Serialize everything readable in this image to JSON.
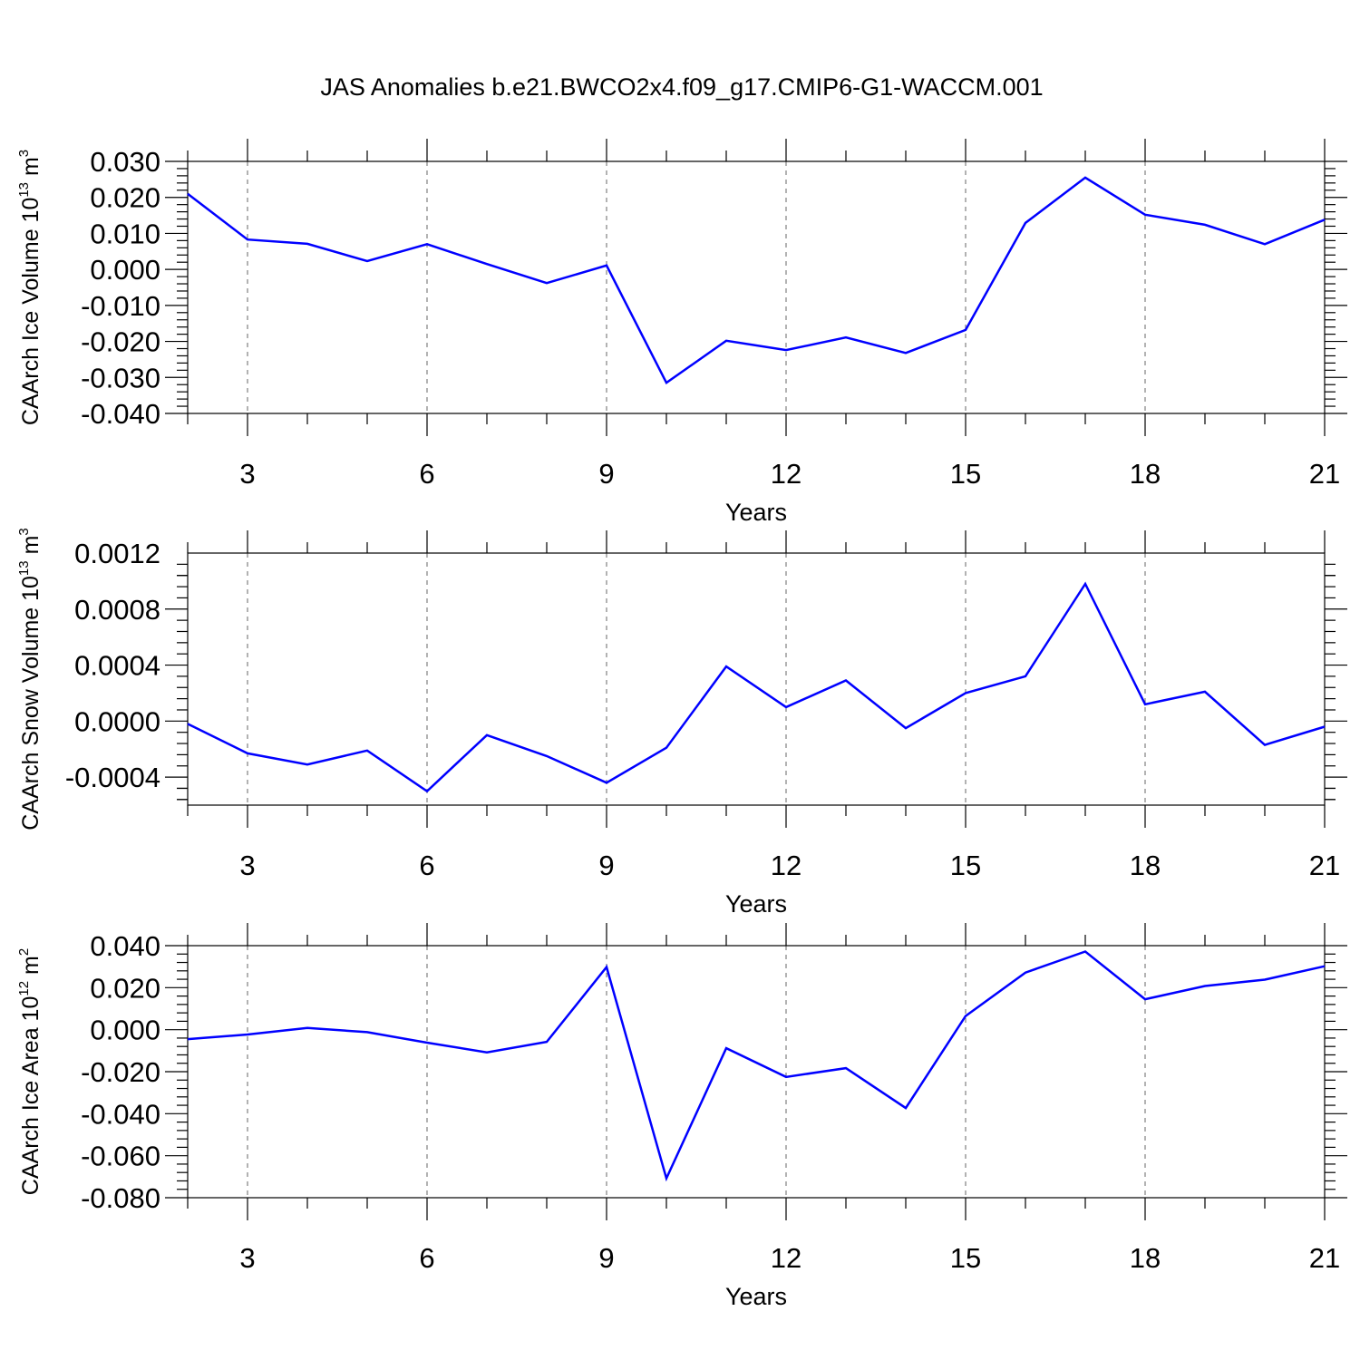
{
  "title": "JAS Anomalies b.e21.BWCO2x4.f09_g17.CMIP6-G1-WACCM.001",
  "colors": {
    "line": "#0000ff",
    "axis": "#000000",
    "grid": "#808080"
  },
  "chart_data": [
    {
      "type": "line",
      "xlabel": "Years",
      "ylabel": {
        "text": "CAArch Ice Volume 10",
        "exponent": "13",
        "unit": "m",
        "unit_exponent": "3"
      },
      "xlim": [
        2,
        21
      ],
      "ylim": [
        -0.04,
        0.03
      ],
      "xticks": [
        3,
        6,
        9,
        12,
        15,
        18,
        21
      ],
      "yticks": [
        "0.030",
        "0.020",
        "0.010",
        "0.000",
        "-0.010",
        "-0.020",
        "-0.030",
        "-0.040"
      ],
      "grid_x": true,
      "x": [
        2,
        3,
        4,
        5,
        6,
        7,
        8,
        9,
        10,
        11,
        12,
        13,
        14,
        15,
        16,
        17,
        18,
        19,
        20,
        21
      ],
      "y": [
        0.021,
        0.0083,
        0.0071,
        0.0023,
        0.007,
        0.0015,
        -0.0038,
        0.0011,
        -0.0315,
        -0.0198,
        -0.0224,
        -0.0189,
        -0.0232,
        -0.0168,
        0.0129,
        0.0255,
        0.0152,
        0.0124,
        0.007,
        0.0138
      ]
    },
    {
      "type": "line",
      "xlabel": "Years",
      "ylabel": {
        "text": "CAArch Snow Volume 10",
        "exponent": "13",
        "unit": "m",
        "unit_exponent": "3"
      },
      "xlim": [
        2,
        21
      ],
      "ylim": [
        -0.0006,
        0.0012
      ],
      "xticks": [
        3,
        6,
        9,
        12,
        15,
        18,
        21
      ],
      "yticks": [
        "0.0012",
        "0.0008",
        "0.0004",
        "0.0000",
        "-0.0004"
      ],
      "grid_x": true,
      "x": [
        2,
        3,
        4,
        5,
        6,
        7,
        8,
        9,
        10,
        11,
        12,
        13,
        14,
        15,
        16,
        17,
        18,
        19,
        20,
        21
      ],
      "y": [
        -2e-05,
        -0.00023,
        -0.00031,
        -0.00021,
        -0.0005,
        -0.0001,
        -0.00025,
        -0.00044,
        -0.00019,
        0.00039,
        0.0001,
        0.00029,
        -5e-05,
        0.0002,
        0.00032,
        0.00098,
        0.00012,
        0.00021,
        -0.00017,
        -4e-05
      ]
    },
    {
      "type": "line",
      "xlabel": "Years",
      "ylabel": {
        "text": "CAArch Ice Area 10",
        "exponent": "12",
        "unit": "m",
        "unit_exponent": "2"
      },
      "xlim": [
        2,
        21
      ],
      "ylim": [
        -0.08,
        0.04
      ],
      "xticks": [
        3,
        6,
        9,
        12,
        15,
        18,
        21
      ],
      "yticks": [
        "0.040",
        "0.020",
        "0.000",
        "-0.020",
        "-0.040",
        "-0.060",
        "-0.080"
      ],
      "grid_x": true,
      "x": [
        2,
        3,
        4,
        5,
        6,
        7,
        8,
        9,
        10,
        11,
        12,
        13,
        14,
        15,
        16,
        17,
        18,
        19,
        20,
        21
      ],
      "y": [
        -0.0045,
        -0.0023,
        0.0008,
        -0.0012,
        -0.0062,
        -0.0108,
        -0.0058,
        0.0298,
        -0.0708,
        -0.0088,
        -0.0225,
        -0.0183,
        -0.0373,
        0.0065,
        0.0272,
        0.0372,
        0.0145,
        0.0208,
        0.0238,
        0.0302
      ]
    }
  ]
}
